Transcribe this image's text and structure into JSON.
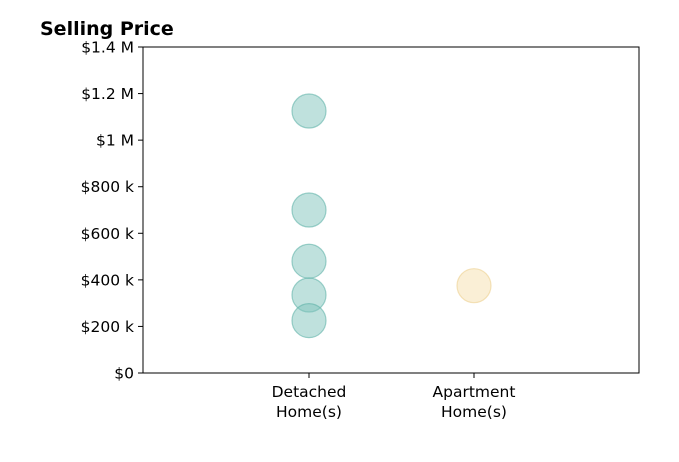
{
  "chart_data": {
    "type": "scatter",
    "title": "Selling Price",
    "xlabel": "",
    "ylabel": "",
    "categories": [
      [
        "Detached",
        "Home(s)"
      ],
      [
        "Apartment",
        "Home(s)"
      ]
    ],
    "ylim": [
      0,
      1400000
    ],
    "yticks": [
      {
        "value": 0,
        "label": "$0"
      },
      {
        "value": 200000,
        "label": "$200 k"
      },
      {
        "value": 400000,
        "label": "$400 k"
      },
      {
        "value": 600000,
        "label": "$600 k"
      },
      {
        "value": 800000,
        "label": "$800 k"
      },
      {
        "value": 1000000,
        "label": "$1 M"
      },
      {
        "value": 1200000,
        "label": "$1.2 M"
      },
      {
        "value": 1400000,
        "label": "$1.4 M"
      }
    ],
    "grid": false,
    "legend": "none",
    "series": [
      {
        "category_index": 0,
        "color": "#7fc4bc",
        "edge": "#5fb3a9",
        "values": [
          1125000,
          700000,
          480000,
          335000,
          225000
        ]
      },
      {
        "category_index": 1,
        "color": "#f5dfae",
        "edge": "#ecd08f",
        "values": [
          375000
        ]
      }
    ]
  }
}
